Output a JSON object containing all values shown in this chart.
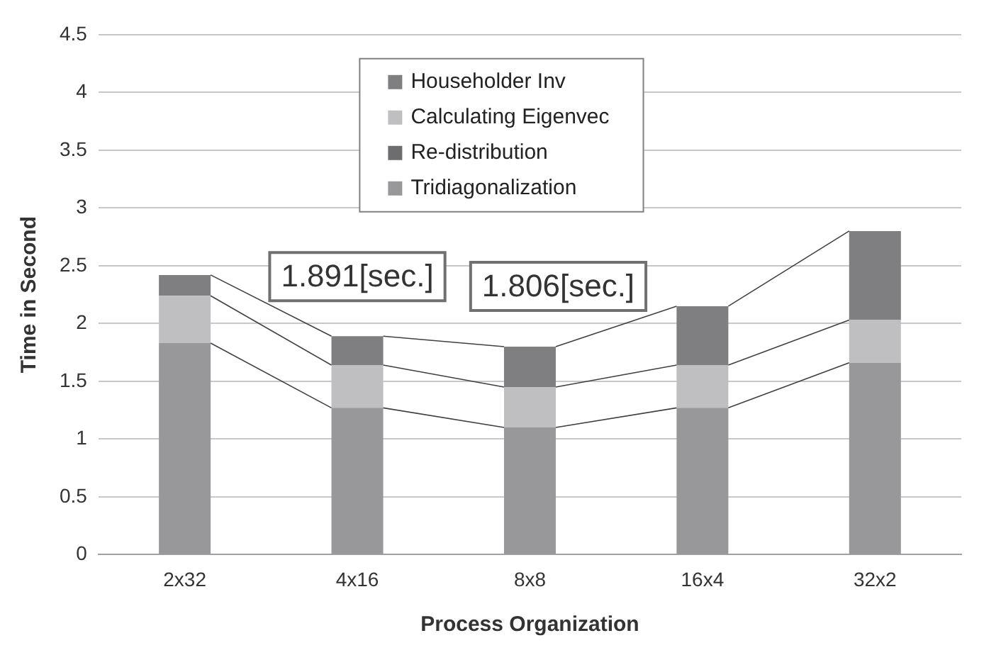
{
  "chart_data": {
    "type": "bar",
    "stacked": true,
    "xlabel": "Process Organization",
    "ylabel": "Time in Second",
    "categories": [
      "2x32",
      "4x16",
      "8x8",
      "16x4",
      "32x2"
    ],
    "series": [
      {
        "name": "Tridiagonalization",
        "color": "#98989b",
        "values": [
          1.83,
          1.27,
          1.1,
          1.27,
          1.66
        ]
      },
      {
        "name": "Re-distribution",
        "color": "#6d6d6f",
        "values": [
          0,
          0,
          0,
          0,
          0
        ]
      },
      {
        "name": "Calculating Eigenvec",
        "color": "#bfbfc1",
        "values": [
          0.41,
          0.37,
          0.35,
          0.37,
          0.37
        ]
      },
      {
        "name": "Householder Inv",
        "color": "#7f7f81",
        "values": [
          0.18,
          0.25,
          0.35,
          0.51,
          0.77
        ]
      }
    ],
    "ylim": [
      0,
      4.5
    ],
    "yticks": [
      0,
      0.5,
      1,
      1.5,
      2,
      2.5,
      3,
      3.5,
      4,
      4.5
    ],
    "grid": "y",
    "legend": "top",
    "annotations": [
      {
        "text": "1.891[sec.]",
        "x": "4x16",
        "y": 1.891
      },
      {
        "text": "1.806[sec.]",
        "x": "8x8",
        "y": 1.806
      }
    ]
  }
}
